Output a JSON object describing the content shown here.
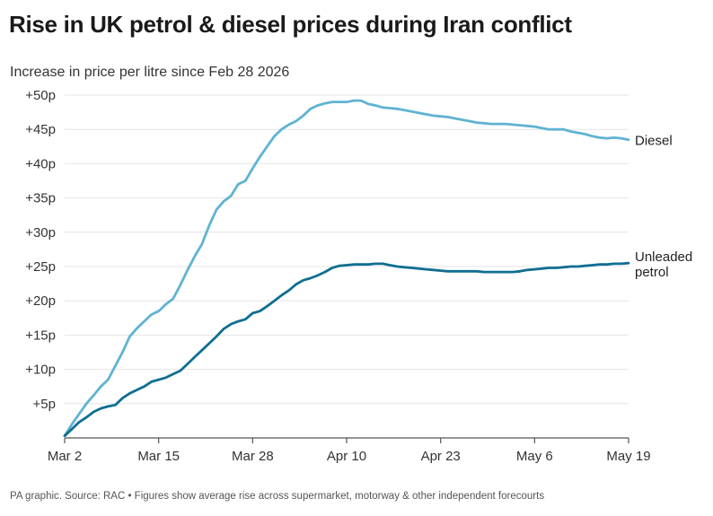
{
  "header": {
    "title": "Rise in UK petrol & diesel prices during Iran conflict",
    "subtitle": "Increase in price per litre since Feb 28 2026"
  },
  "footer": {
    "source": "PA graphic. Source: RAC • Figures show average rise across supermarket, motorway & other independent forecourts"
  },
  "chart_data": {
    "type": "line",
    "title": "Rise in UK petrol & diesel prices during Iran conflict",
    "ylabel": "Increase in price per litre since Feb 28 2026",
    "ylim": [
      0,
      50
    ],
    "xlim": [
      "Mar 2",
      "May 19"
    ],
    "grid": true,
    "x_ticks": [
      {
        "day": 0,
        "label": "Mar 2"
      },
      {
        "day": 13,
        "label": "Mar 15"
      },
      {
        "day": 26,
        "label": "Mar 28"
      },
      {
        "day": 39,
        "label": "Apr 10"
      },
      {
        "day": 52,
        "label": "Apr 23"
      },
      {
        "day": 65,
        "label": "May 6"
      },
      {
        "day": 78,
        "label": "May 19"
      }
    ],
    "y_ticks": [
      {
        "value": 5,
        "label": "+5p"
      },
      {
        "value": 10,
        "label": "+10p"
      },
      {
        "value": 15,
        "label": "+15p"
      },
      {
        "value": 20,
        "label": "+20p"
      },
      {
        "value": 25,
        "label": "+25p"
      },
      {
        "value": 30,
        "label": "+30p"
      },
      {
        "value": 35,
        "label": "+35p"
      },
      {
        "value": 40,
        "label": "+40p"
      },
      {
        "value": 45,
        "label": "+45p"
      },
      {
        "value": 50,
        "label": "+50p"
      }
    ],
    "series": [
      {
        "name": "Diesel",
        "label_lines": [
          "Diesel"
        ],
        "color": "#5fb3d2",
        "points": [
          [
            0,
            0.3
          ],
          [
            1,
            2
          ],
          [
            2,
            3.5
          ],
          [
            3,
            5
          ],
          [
            4,
            6.2
          ],
          [
            5,
            7.5
          ],
          [
            6,
            8.5
          ],
          [
            7,
            10.5
          ],
          [
            8,
            12.5
          ],
          [
            9,
            14.8
          ],
          [
            10,
            16
          ],
          [
            11,
            17
          ],
          [
            12,
            18
          ],
          [
            13,
            18.5
          ],
          [
            14,
            19.5
          ],
          [
            15,
            20.3
          ],
          [
            16,
            22.3
          ],
          [
            17,
            24.5
          ],
          [
            18,
            26.5
          ],
          [
            19,
            28.3
          ],
          [
            20,
            31
          ],
          [
            21,
            33.3
          ],
          [
            22,
            34.5
          ],
          [
            23,
            35.3
          ],
          [
            24,
            37
          ],
          [
            25,
            37.5
          ],
          [
            26,
            39.3
          ],
          [
            27,
            41
          ],
          [
            28,
            42.5
          ],
          [
            29,
            44
          ],
          [
            30,
            45
          ],
          [
            31,
            45.7
          ],
          [
            32,
            46.2
          ],
          [
            33,
            47
          ],
          [
            34,
            48
          ],
          [
            35,
            48.5
          ],
          [
            36,
            48.8
          ],
          [
            37,
            49
          ],
          [
            38,
            49
          ],
          [
            39,
            49
          ],
          [
            40,
            49.2
          ],
          [
            41,
            49.2
          ],
          [
            42,
            48.7
          ],
          [
            43,
            48.5
          ],
          [
            44,
            48.2
          ],
          [
            45,
            48.1
          ],
          [
            46,
            48
          ],
          [
            47,
            47.8
          ],
          [
            48,
            47.6
          ],
          [
            49,
            47.4
          ],
          [
            50,
            47.2
          ],
          [
            51,
            47
          ],
          [
            52,
            46.9
          ],
          [
            53,
            46.8
          ],
          [
            54,
            46.6
          ],
          [
            55,
            46.4
          ],
          [
            56,
            46.2
          ],
          [
            57,
            46
          ],
          [
            58,
            45.9
          ],
          [
            59,
            45.8
          ],
          [
            60,
            45.8
          ],
          [
            61,
            45.8
          ],
          [
            62,
            45.7
          ],
          [
            63,
            45.6
          ],
          [
            64,
            45.5
          ],
          [
            65,
            45.4
          ],
          [
            66,
            45.2
          ],
          [
            67,
            45
          ],
          [
            68,
            45
          ],
          [
            69,
            45
          ],
          [
            70,
            44.7
          ],
          [
            71,
            44.5
          ],
          [
            72,
            44.3
          ],
          [
            73,
            44
          ],
          [
            74,
            43.8
          ],
          [
            75,
            43.7
          ],
          [
            76,
            43.8
          ],
          [
            77,
            43.7
          ],
          [
            78,
            43.5
          ]
        ]
      },
      {
        "name": "Unleaded petrol",
        "label_lines": [
          "Unleaded",
          "petrol"
        ],
        "color": "#0f6e91",
        "points": [
          [
            0,
            0.3
          ],
          [
            1,
            1.3
          ],
          [
            2,
            2.3
          ],
          [
            3,
            3
          ],
          [
            4,
            3.8
          ],
          [
            5,
            4.3
          ],
          [
            6,
            4.6
          ],
          [
            7,
            4.8
          ],
          [
            8,
            5.8
          ],
          [
            9,
            6.5
          ],
          [
            10,
            7
          ],
          [
            11,
            7.5
          ],
          [
            12,
            8.2
          ],
          [
            13,
            8.5
          ],
          [
            14,
            8.8
          ],
          [
            15,
            9.3
          ],
          [
            16,
            9.8
          ],
          [
            17,
            10.8
          ],
          [
            18,
            11.8
          ],
          [
            19,
            12.8
          ],
          [
            20,
            13.8
          ],
          [
            21,
            14.8
          ],
          [
            22,
            15.9
          ],
          [
            23,
            16.6
          ],
          [
            24,
            17
          ],
          [
            25,
            17.3
          ],
          [
            26,
            18.2
          ],
          [
            27,
            18.5
          ],
          [
            28,
            19.2
          ],
          [
            29,
            20
          ],
          [
            30,
            20.8
          ],
          [
            31,
            21.5
          ],
          [
            32,
            22.4
          ],
          [
            33,
            23
          ],
          [
            34,
            23.3
          ],
          [
            35,
            23.7
          ],
          [
            36,
            24.2
          ],
          [
            37,
            24.8
          ],
          [
            38,
            25.1
          ],
          [
            39,
            25.2
          ],
          [
            40,
            25.3
          ],
          [
            41,
            25.3
          ],
          [
            42,
            25.3
          ],
          [
            43,
            25.4
          ],
          [
            44,
            25.4
          ],
          [
            45,
            25.2
          ],
          [
            46,
            25
          ],
          [
            47,
            24.9
          ],
          [
            48,
            24.8
          ],
          [
            49,
            24.7
          ],
          [
            50,
            24.6
          ],
          [
            51,
            24.5
          ],
          [
            52,
            24.4
          ],
          [
            53,
            24.3
          ],
          [
            54,
            24.3
          ],
          [
            55,
            24.3
          ],
          [
            56,
            24.3
          ],
          [
            57,
            24.3
          ],
          [
            58,
            24.2
          ],
          [
            59,
            24.2
          ],
          [
            60,
            24.2
          ],
          [
            61,
            24.2
          ],
          [
            62,
            24.2
          ],
          [
            63,
            24.3
          ],
          [
            64,
            24.5
          ],
          [
            65,
            24.6
          ],
          [
            66,
            24.7
          ],
          [
            67,
            24.8
          ],
          [
            68,
            24.8
          ],
          [
            69,
            24.9
          ],
          [
            70,
            25
          ],
          [
            71,
            25
          ],
          [
            72,
            25.1
          ],
          [
            73,
            25.2
          ],
          [
            74,
            25.3
          ],
          [
            75,
            25.3
          ],
          [
            76,
            25.4
          ],
          [
            77,
            25.4
          ],
          [
            78,
            25.5
          ]
        ]
      }
    ]
  }
}
